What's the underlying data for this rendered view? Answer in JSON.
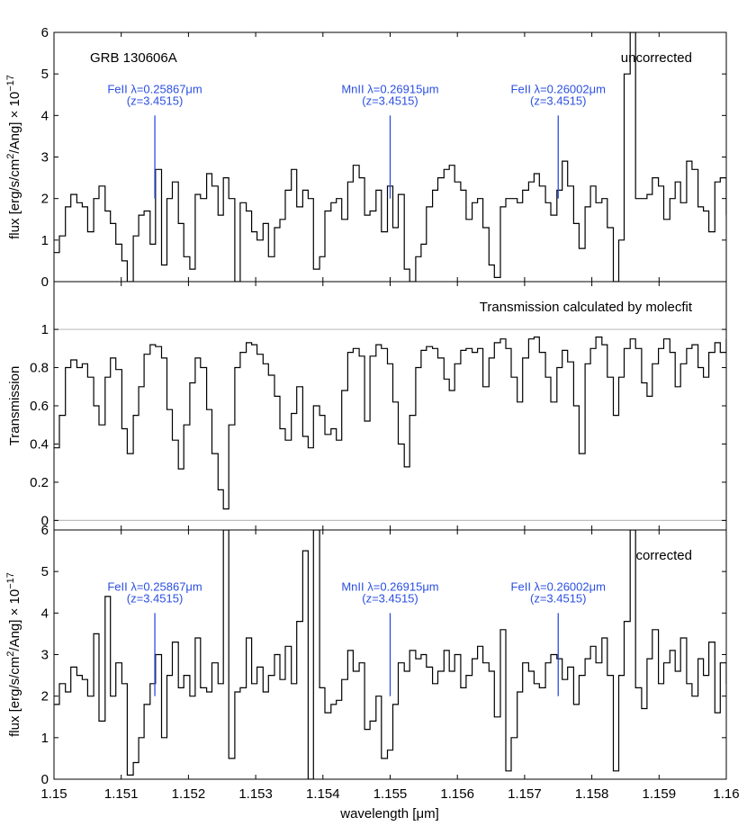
{
  "figure": {
    "xlabel": "wavelength [μm]",
    "x_ticks": [
      "1.15",
      "1.151",
      "1.152",
      "1.153",
      "1.154",
      "1.155",
      "1.156",
      "1.157",
      "1.158",
      "1.159",
      "1.16"
    ]
  },
  "chart_data": [
    {
      "type": "line",
      "panel": "top",
      "step": true,
      "ylabel_main": "flux [erg/s/cm",
      "ylabel_sup1": "2",
      "ylabel_mid": "/Ang] × 10",
      "ylabel_sup2": "−17",
      "title_left": "GRB 130606A",
      "title_right": "uncorrected",
      "xlim": [
        1.15,
        1.16
      ],
      "ylim": [
        0,
        6
      ],
      "y_ticks": [
        "0",
        "1",
        "2",
        "3",
        "4",
        "5",
        "6"
      ],
      "line_color": "#000000",
      "annotations": [
        {
          "line1": "FeII λ=0.25867μm",
          "line2": "(z=3.4515)",
          "x": 1.1515,
          "y_bottom": 2.0,
          "y_top": 4.0,
          "color": "#2b4fe0"
        },
        {
          "line1": "MnII λ=0.26915μm",
          "line2": "(z=3.4515)",
          "x": 1.155,
          "y_bottom": 2.0,
          "y_top": 4.0,
          "color": "#2b4fe0"
        },
        {
          "line1": "FeII λ=0.26002μm",
          "line2": "(z=3.4515)",
          "x": 1.1575,
          "y_bottom": 2.0,
          "y_top": 4.0,
          "color": "#2b4fe0"
        }
      ],
      "x": [
        1.15,
        1.15008,
        1.15017,
        1.15025,
        1.15034,
        1.15042,
        1.1505,
        1.15059,
        1.15067,
        1.15076,
        1.15084,
        1.15092,
        1.15101,
        1.15109,
        1.15118,
        1.15126,
        1.15134,
        1.15143,
        1.15151,
        1.1516,
        1.15168,
        1.15176,
        1.15185,
        1.15193,
        1.15202,
        1.1521,
        1.15218,
        1.15227,
        1.15235,
        1.15244,
        1.15252,
        1.1526,
        1.15269,
        1.15277,
        1.15286,
        1.15294,
        1.15302,
        1.15311,
        1.15319,
        1.15328,
        1.15336,
        1.15344,
        1.15353,
        1.15361,
        1.1537,
        1.15378,
        1.15386,
        1.15395,
        1.15403,
        1.15412,
        1.1542,
        1.15428,
        1.15437,
        1.15445,
        1.15454,
        1.15462,
        1.1547,
        1.15479,
        1.15487,
        1.15496,
        1.15504,
        1.15512,
        1.15521,
        1.15529,
        1.15538,
        1.15546,
        1.15554,
        1.15563,
        1.15571,
        1.1558,
        1.15588,
        1.15596,
        1.15605,
        1.15613,
        1.15622,
        1.1563,
        1.15638,
        1.15647,
        1.15655,
        1.15664,
        1.15672,
        1.1568,
        1.15689,
        1.15697,
        1.15706,
        1.15714,
        1.15722,
        1.15731,
        1.15739,
        1.15748,
        1.15756,
        1.15764,
        1.15773,
        1.15781,
        1.1579,
        1.15798,
        1.15806,
        1.15815,
        1.15823,
        1.15832,
        1.1584,
        1.15848,
        1.15857,
        1.15865,
        1.15874,
        1.15882,
        1.1589,
        1.15899,
        1.15907,
        1.15916,
        1.15924,
        1.15932,
        1.15941,
        1.15949,
        1.15958,
        1.15966,
        1.15974,
        1.15983,
        1.15991,
        1.16
      ],
      "y": [
        0.7,
        1.1,
        1.8,
        2.1,
        1.9,
        1.8,
        1.2,
        2.0,
        2.3,
        1.7,
        1.4,
        0.9,
        0.5,
        0.0,
        1.1,
        1.6,
        1.7,
        0.9,
        2.7,
        0.4,
        2.0,
        2.4,
        1.4,
        0.6,
        0.3,
        2.1,
        2.0,
        2.6,
        2.3,
        1.6,
        2.5,
        2.0,
        0.0,
        1.9,
        1.7,
        1.2,
        1.0,
        1.4,
        0.6,
        1.3,
        1.5,
        2.2,
        2.7,
        1.8,
        2.2,
        2.0,
        0.3,
        0.6,
        1.7,
        1.9,
        2.0,
        1.5,
        2.4,
        2.8,
        2.5,
        1.6,
        1.7,
        2.2,
        1.2,
        2.3,
        1.3,
        2.1,
        0.3,
        0.0,
        0.6,
        0.9,
        1.8,
        2.2,
        2.5,
        2.7,
        2.8,
        2.4,
        2.2,
        1.5,
        1.9,
        2.0,
        1.3,
        0.4,
        0.1,
        1.8,
        2.0,
        2.0,
        1.9,
        2.2,
        2.4,
        2.6,
        2.3,
        1.9,
        1.6,
        2.2,
        2.9,
        2.3,
        1.4,
        0.8,
        1.8,
        2.3,
        1.9,
        2.0,
        1.3,
        0.0,
        1.0,
        5.0,
        6.0,
        2.0,
        2.0,
        2.1,
        2.5,
        2.3,
        1.5,
        2.0,
        2.4,
        1.9,
        2.9,
        2.7,
        1.8,
        1.7,
        1.2,
        2.4,
        2.5,
        1.6
      ]
    },
    {
      "type": "line",
      "panel": "middle",
      "step": true,
      "ylabel": "Transmission",
      "title_right": "Transmission calculated by molecfit",
      "xlim": [
        1.15,
        1.16
      ],
      "ylim": [
        -0.05,
        1.25
      ],
      "y_ticks": [
        "0",
        "0.2",
        "0.4",
        "0.6",
        "0.8",
        "1"
      ],
      "reference_lines": [
        0,
        1
      ],
      "reference_color": "#bfbfbf",
      "line_color": "#000000",
      "x": [
        1.15,
        1.15008,
        1.15017,
        1.15025,
        1.15034,
        1.15042,
        1.1505,
        1.15059,
        1.15067,
        1.15076,
        1.15084,
        1.15092,
        1.15101,
        1.15109,
        1.15118,
        1.15126,
        1.15134,
        1.15143,
        1.15151,
        1.1516,
        1.15168,
        1.15176,
        1.15185,
        1.15193,
        1.15202,
        1.1521,
        1.15218,
        1.15227,
        1.15235,
        1.15244,
        1.15252,
        1.1526,
        1.15269,
        1.15277,
        1.15286,
        1.15294,
        1.15302,
        1.15311,
        1.15319,
        1.15328,
        1.15336,
        1.15344,
        1.15353,
        1.15361,
        1.1537,
        1.15378,
        1.15386,
        1.15395,
        1.15403,
        1.15412,
        1.1542,
        1.15428,
        1.15437,
        1.15445,
        1.15454,
        1.15462,
        1.1547,
        1.15479,
        1.15487,
        1.15496,
        1.15504,
        1.15512,
        1.15521,
        1.15529,
        1.15538,
        1.15546,
        1.15554,
        1.15563,
        1.15571,
        1.1558,
        1.15588,
        1.15596,
        1.15605,
        1.15613,
        1.15622,
        1.1563,
        1.15638,
        1.15647,
        1.15655,
        1.15664,
        1.15672,
        1.1568,
        1.15689,
        1.15697,
        1.15706,
        1.15714,
        1.15722,
        1.15731,
        1.15739,
        1.15748,
        1.15756,
        1.15764,
        1.15773,
        1.15781,
        1.1579,
        1.15798,
        1.15806,
        1.15815,
        1.15823,
        1.15832,
        1.1584,
        1.15848,
        1.15857,
        1.15865,
        1.15874,
        1.15882,
        1.1589,
        1.15899,
        1.15907,
        1.15916,
        1.15924,
        1.15932,
        1.15941,
        1.15949,
        1.15958,
        1.15966,
        1.15974,
        1.15983,
        1.15991,
        1.16
      ],
      "y": [
        0.38,
        0.55,
        0.8,
        0.84,
        0.8,
        0.82,
        0.75,
        0.6,
        0.5,
        0.75,
        0.85,
        0.79,
        0.48,
        0.35,
        0.55,
        0.7,
        0.87,
        0.92,
        0.91,
        0.85,
        0.58,
        0.42,
        0.27,
        0.5,
        0.72,
        0.85,
        0.8,
        0.58,
        0.35,
        0.16,
        0.06,
        0.5,
        0.8,
        0.88,
        0.93,
        0.92,
        0.87,
        0.82,
        0.76,
        0.65,
        0.48,
        0.42,
        0.56,
        0.7,
        0.44,
        0.38,
        0.6,
        0.55,
        0.45,
        0.48,
        0.42,
        0.68,
        0.88,
        0.9,
        0.86,
        0.52,
        0.86,
        0.92,
        0.9,
        0.82,
        0.62,
        0.4,
        0.28,
        0.55,
        0.8,
        0.89,
        0.91,
        0.9,
        0.85,
        0.74,
        0.68,
        0.82,
        0.89,
        0.9,
        0.88,
        0.9,
        0.7,
        0.85,
        0.93,
        0.95,
        0.9,
        0.75,
        0.62,
        0.85,
        0.95,
        0.96,
        0.88,
        0.75,
        0.62,
        0.8,
        0.89,
        0.83,
        0.6,
        0.35,
        0.82,
        0.9,
        0.96,
        0.92,
        0.75,
        0.55,
        0.75,
        0.9,
        0.95,
        0.9,
        0.72,
        0.65,
        0.82,
        0.9,
        0.95,
        0.88,
        0.7,
        0.82,
        0.9,
        0.92,
        0.8,
        0.75,
        0.88,
        0.93,
        0.88,
        0.95
      ]
    },
    {
      "type": "line",
      "panel": "bottom",
      "step": true,
      "ylabel_main": "flux [erg/s/cm",
      "ylabel_sup1": "2",
      "ylabel_mid": "/Ang] × 10",
      "ylabel_sup2": "−17",
      "title_right": "corrected",
      "xlim": [
        1.15,
        1.16
      ],
      "ylim": [
        0,
        6
      ],
      "y_ticks": [
        "0",
        "1",
        "2",
        "3",
        "4",
        "5",
        "6"
      ],
      "line_color": "#000000",
      "annotations": [
        {
          "line1": "FeII λ=0.25867μm",
          "line2": "(z=3.4515)",
          "x": 1.1515,
          "y_bottom": 2.0,
          "y_top": 4.0,
          "color": "#2b4fe0"
        },
        {
          "line1": "MnII λ=0.26915μm",
          "line2": "(z=3.4515)",
          "x": 1.155,
          "y_bottom": 2.0,
          "y_top": 4.0,
          "color": "#2b4fe0"
        },
        {
          "line1": "FeII λ=0.26002μm",
          "line2": "(z=3.4515)",
          "x": 1.1575,
          "y_bottom": 2.0,
          "y_top": 4.0,
          "color": "#2b4fe0"
        }
      ],
      "x": [
        1.15,
        1.15008,
        1.15017,
        1.15025,
        1.15034,
        1.15042,
        1.1505,
        1.15059,
        1.15067,
        1.15076,
        1.15084,
        1.15092,
        1.15101,
        1.15109,
        1.15118,
        1.15126,
        1.15134,
        1.15143,
        1.15151,
        1.1516,
        1.15168,
        1.15176,
        1.15185,
        1.15193,
        1.15202,
        1.1521,
        1.15218,
        1.15227,
        1.15235,
        1.15244,
        1.15252,
        1.1526,
        1.15269,
        1.15277,
        1.15286,
        1.15294,
        1.15302,
        1.15311,
        1.15319,
        1.15328,
        1.15336,
        1.15344,
        1.15353,
        1.15361,
        1.1537,
        1.15378,
        1.15386,
        1.15395,
        1.15403,
        1.15412,
        1.1542,
        1.15428,
        1.15437,
        1.15445,
        1.15454,
        1.15462,
        1.1547,
        1.15479,
        1.15487,
        1.15496,
        1.15504,
        1.15512,
        1.15521,
        1.15529,
        1.15538,
        1.15546,
        1.15554,
        1.15563,
        1.15571,
        1.1558,
        1.15588,
        1.15596,
        1.15605,
        1.15613,
        1.15622,
        1.1563,
        1.15638,
        1.15647,
        1.15655,
        1.15664,
        1.15672,
        1.1568,
        1.15689,
        1.15697,
        1.15706,
        1.15714,
        1.15722,
        1.15731,
        1.15739,
        1.15748,
        1.15756,
        1.15764,
        1.15773,
        1.15781,
        1.1579,
        1.15798,
        1.15806,
        1.15815,
        1.15823,
        1.15832,
        1.1584,
        1.15848,
        1.15857,
        1.15865,
        1.15874,
        1.15882,
        1.1589,
        1.15899,
        1.15907,
        1.15916,
        1.15924,
        1.15932,
        1.15941,
        1.15949,
        1.15958,
        1.15966,
        1.15974,
        1.15983,
        1.15991,
        1.16
      ],
      "y": [
        1.8,
        2.3,
        2.1,
        2.7,
        2.5,
        2.4,
        2.0,
        3.5,
        1.4,
        4.4,
        2.0,
        2.8,
        2.3,
        0.1,
        0.4,
        1.0,
        1.8,
        2.3,
        3.0,
        1.0,
        2.5,
        3.3,
        2.2,
        2.5,
        2.0,
        3.4,
        2.2,
        2.1,
        2.8,
        2.3,
        6.0,
        0.5,
        2.1,
        2.2,
        3.4,
        2.3,
        2.7,
        2.1,
        2.5,
        3.0,
        2.4,
        3.2,
        2.3,
        3.8,
        5.5,
        0.0,
        6.0,
        2.2,
        1.6,
        1.8,
        1.9,
        2.4,
        3.1,
        2.6,
        2.8,
        1.2,
        1.4,
        2.0,
        0.5,
        0.7,
        1.8,
        2.8,
        2.6,
        3.1,
        2.9,
        3.0,
        2.7,
        2.3,
        2.6,
        3.1,
        2.6,
        3.0,
        2.2,
        2.5,
        2.9,
        3.2,
        2.8,
        2.6,
        1.5,
        3.6,
        0.2,
        1.0,
        2.1,
        2.8,
        2.6,
        2.3,
        2.2,
        2.8,
        3.0,
        2.9,
        2.4,
        2.7,
        1.8,
        2.5,
        2.9,
        3.2,
        2.8,
        3.4,
        2.5,
        0.2,
        2.5,
        3.8,
        6.0,
        2.2,
        1.7,
        2.9,
        3.6,
        2.3,
        2.8,
        3.1,
        2.6,
        3.4,
        2.3,
        2.0,
        2.9,
        2.5,
        3.3,
        1.6,
        2.8,
        2.3
      ]
    }
  ]
}
